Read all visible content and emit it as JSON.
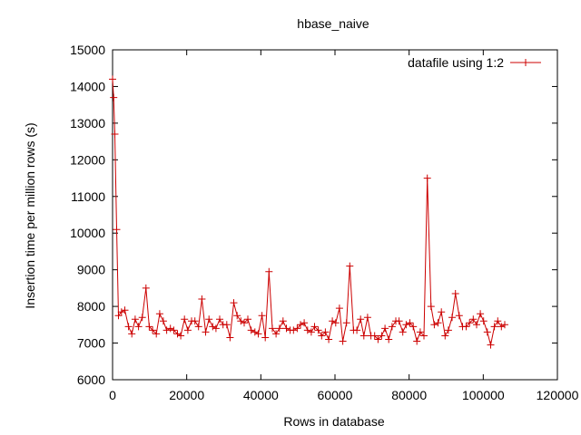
{
  "chart_data": {
    "type": "line",
    "title": "hbase_naive",
    "xlabel": "Rows in database",
    "ylabel": "Insertion time per million rows (s)",
    "xlim": [
      0,
      120000
    ],
    "ylim": [
      6000,
      15000
    ],
    "xticks": [
      0,
      20000,
      40000,
      60000,
      80000,
      100000,
      120000
    ],
    "yticks": [
      6000,
      7000,
      8000,
      9000,
      10000,
      11000,
      12000,
      13000,
      14000,
      15000
    ],
    "grid": false,
    "legend_position": "top-right",
    "series": [
      {
        "name": "datafile using 1:2",
        "color": "#cc0000",
        "marker": "plus",
        "x": [
          0,
          300,
          600,
          1100,
          1600,
          2400,
          3300,
          4300,
          5200,
          6100,
          7000,
          8000,
          9000,
          9900,
          10800,
          11800,
          12700,
          13700,
          14600,
          15600,
          16500,
          17500,
          18400,
          19400,
          20300,
          21300,
          22200,
          23200,
          24100,
          25100,
          26000,
          27000,
          27900,
          28900,
          29800,
          30800,
          31700,
          32700,
          33600,
          34600,
          35500,
          36500,
          37400,
          38400,
          39300,
          40300,
          41200,
          42200,
          43100,
          44100,
          45000,
          46000,
          46900,
          47900,
          48800,
          49800,
          50700,
          51700,
          52600,
          53600,
          54500,
          55500,
          56400,
          57400,
          58300,
          59300,
          60200,
          61200,
          62100,
          63100,
          64000,
          65000,
          65900,
          66900,
          67800,
          68800,
          69700,
          70700,
          71600,
          72600,
          73500,
          74500,
          75400,
          76400,
          77300,
          78300,
          79200,
          80200,
          81100,
          82100,
          83000,
          84000,
          84900,
          85900,
          86800,
          87800,
          88700,
          89700,
          90600,
          91600,
          92500,
          93500,
          94400,
          95400,
          96300,
          97300,
          98200,
          99200,
          100100,
          101100,
          102000,
          103000,
          103900,
          104900,
          105800
        ],
        "y": [
          14200,
          13700,
          12700,
          10100,
          7750,
          7850,
          7900,
          7450,
          7250,
          7650,
          7450,
          7700,
          8500,
          7450,
          7350,
          7250,
          7800,
          7600,
          7350,
          7400,
          7350,
          7250,
          7200,
          7650,
          7350,
          7600,
          7600,
          7450,
          8200,
          7300,
          7650,
          7450,
          7400,
          7650,
          7500,
          7500,
          7150,
          8100,
          7750,
          7600,
          7550,
          7650,
          7350,
          7300,
          7250,
          7750,
          7150,
          8950,
          7400,
          7250,
          7400,
          7600,
          7400,
          7350,
          7350,
          7400,
          7500,
          7550,
          7350,
          7300,
          7450,
          7350,
          7200,
          7300,
          7100,
          7600,
          7550,
          7950,
          7050,
          7550,
          9100,
          7350,
          7350,
          7650,
          7200,
          7700,
          7200,
          7200,
          7100,
          7200,
          7400,
          7100,
          7450,
          7600,
          7600,
          7300,
          7500,
          7550,
          7450,
          7050,
          7300,
          7200,
          11500,
          8000,
          7500,
          7550,
          7850,
          7200,
          7350,
          7700,
          8350,
          7750,
          7450,
          7450,
          7550,
          7650,
          7500,
          7800,
          7600,
          7300,
          6950,
          7450,
          7600,
          7450,
          7500
        ]
      }
    ]
  }
}
